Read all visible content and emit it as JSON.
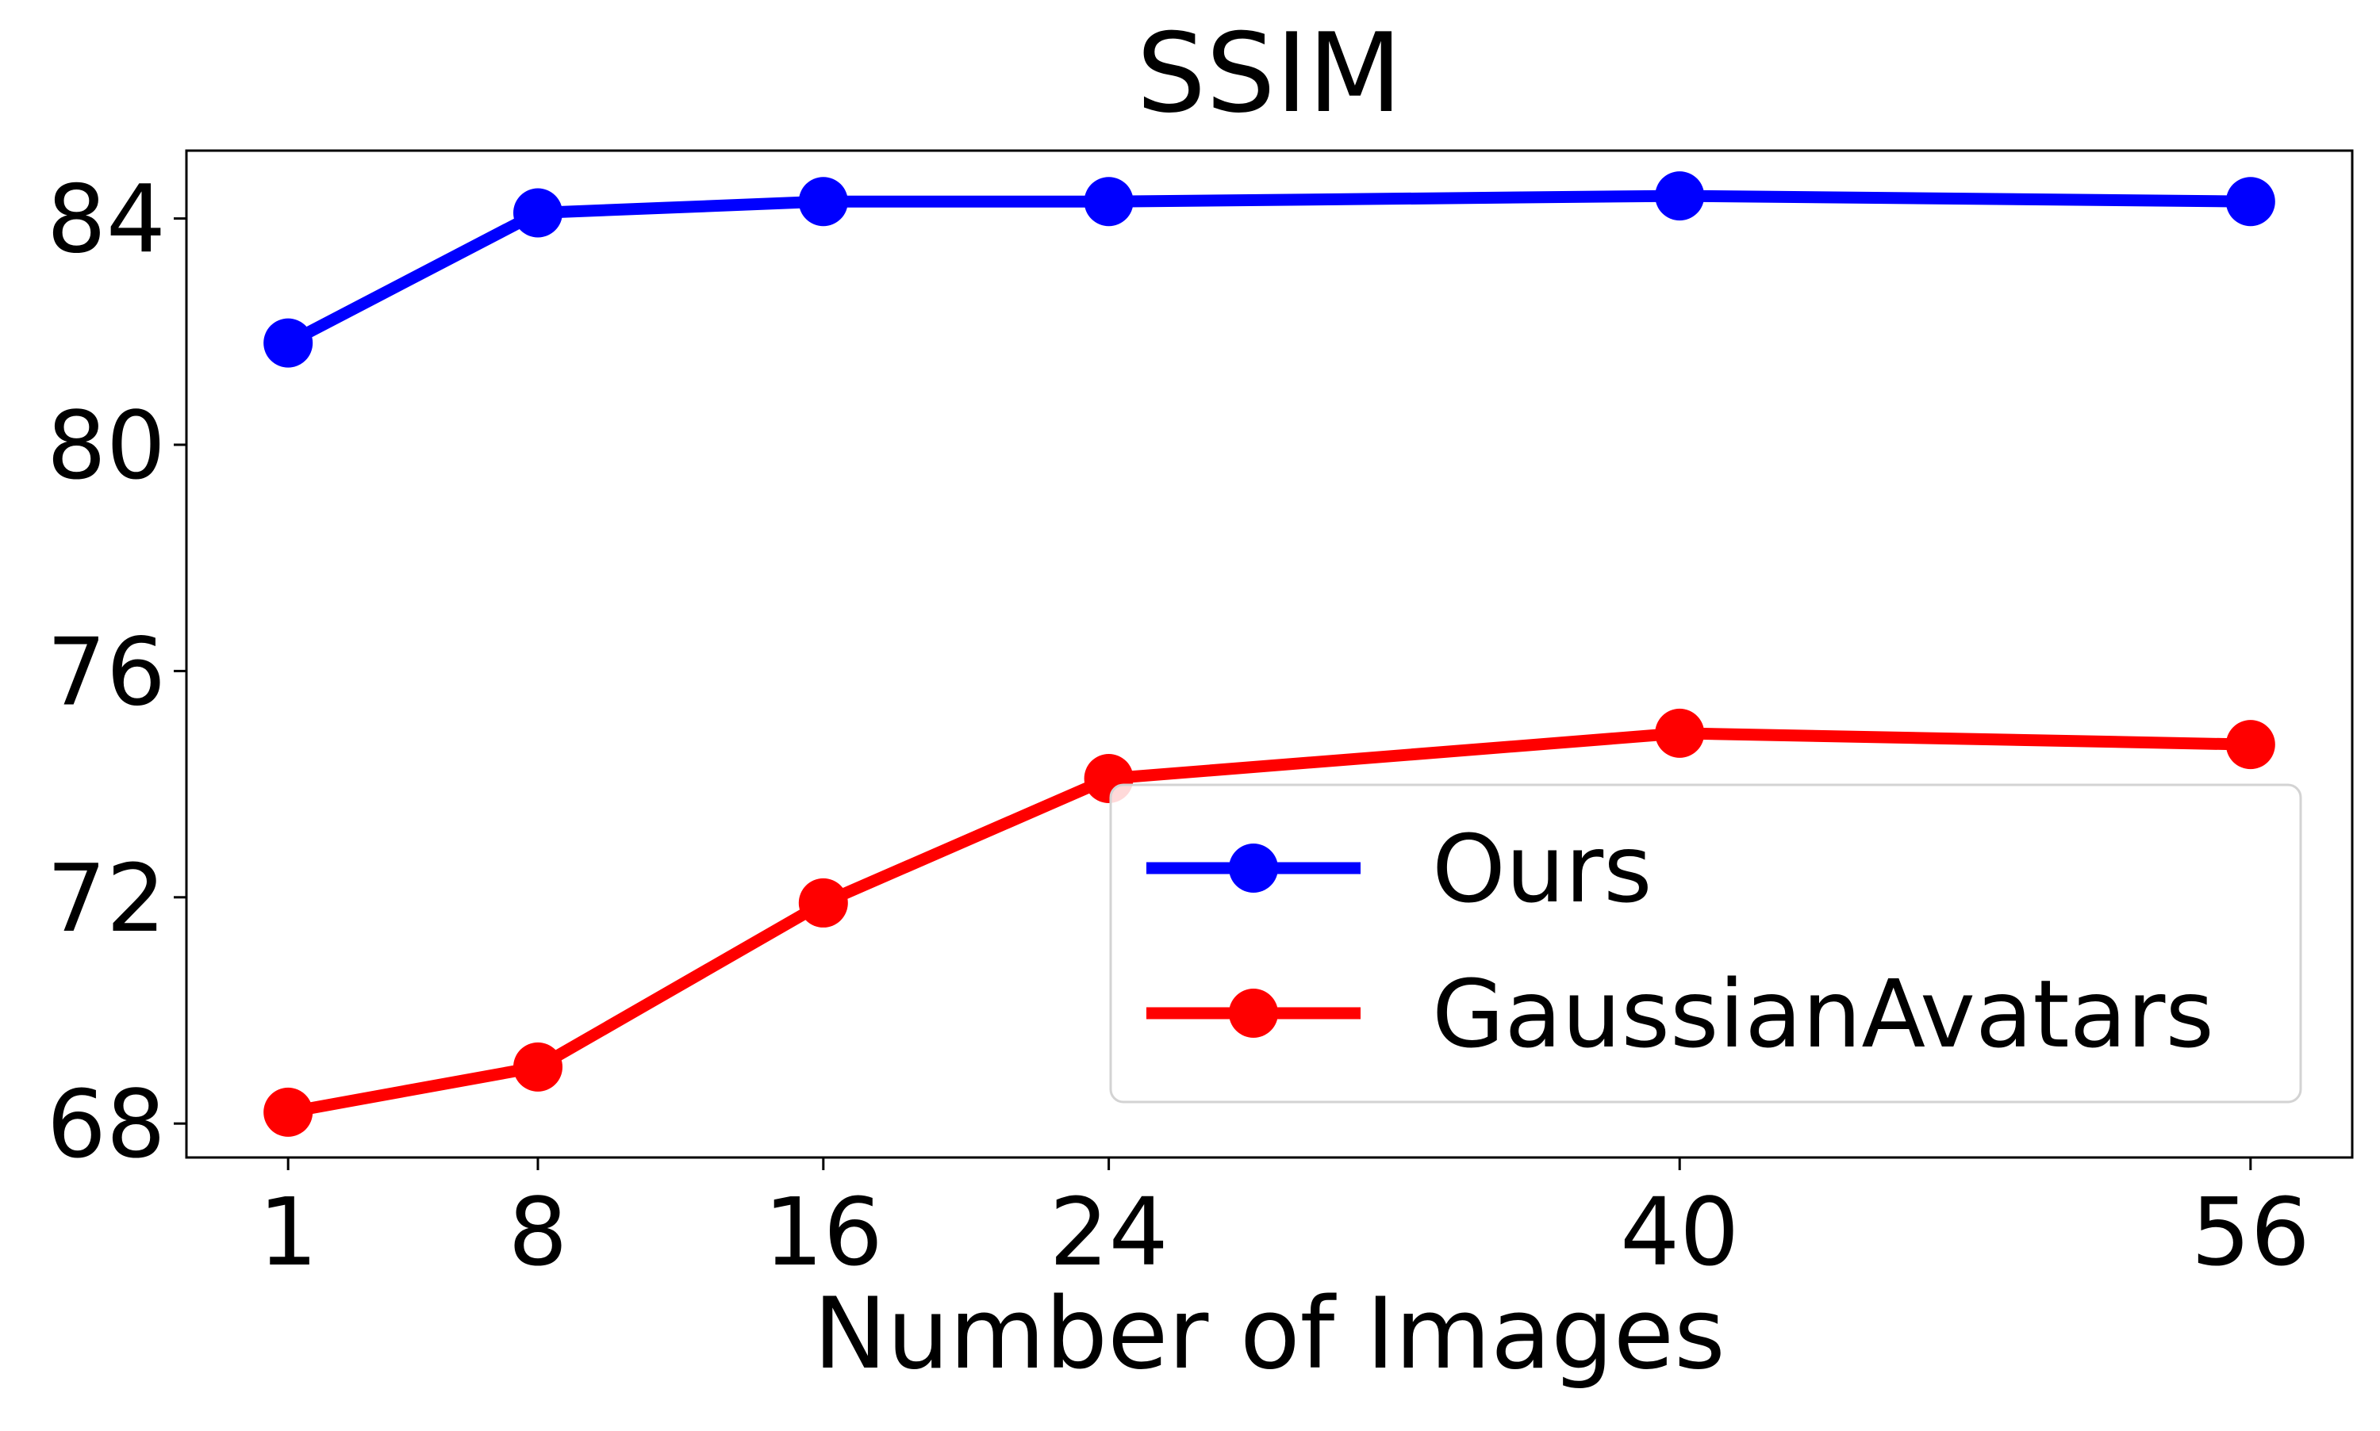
{
  "chart_data": {
    "type": "line",
    "title": "SSIM",
    "xlabel": "Number of Images",
    "ylabel": "",
    "x": [
      1,
      8,
      16,
      24,
      40,
      56
    ],
    "xticks": [
      "1",
      "8",
      "16",
      "24",
      "40",
      "56"
    ],
    "xlim": [
      -1.85,
      58.85
    ],
    "yticks": [
      "68",
      "72",
      "76",
      "80",
      "84"
    ],
    "ylim": [
      67.4,
      85.2
    ],
    "grid": false,
    "legend_position": "lower-right",
    "series": [
      {
        "name": "Ours",
        "color": "#0000ff",
        "values": [
          81.8,
          84.1,
          84.3,
          84.3,
          84.4,
          84.3
        ]
      },
      {
        "name": "GaussianAvatars",
        "color": "#ff0000",
        "values": [
          68.2,
          69.0,
          71.9,
          74.1,
          74.9,
          74.7
        ]
      }
    ]
  }
}
